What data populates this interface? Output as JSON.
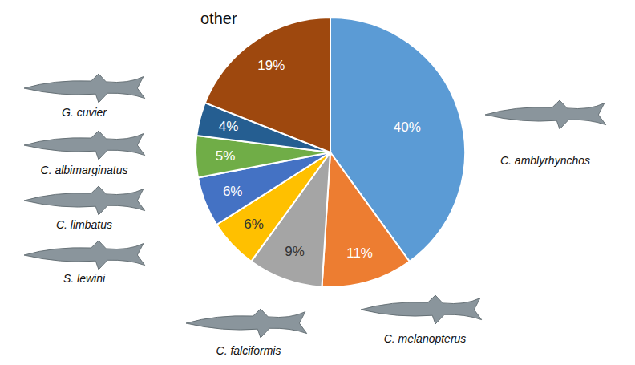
{
  "chart_data": {
    "type": "pie",
    "categories": [
      "C. amblyrhynchos",
      "C. melanopterus",
      "C. falciformis",
      "S. lewini",
      "C. limbatus",
      "C. albimarginatus",
      "G. cuvier",
      "other"
    ],
    "values": [
      40,
      11,
      9,
      6,
      6,
      5,
      4,
      19
    ],
    "value_labels": [
      "40%",
      "11%",
      "9%",
      "6%",
      "6%",
      "5%",
      "4%",
      "19%"
    ],
    "colors": [
      "#5b9bd5",
      "#ed7d31",
      "#a5a5a5",
      "#ffc000",
      "#4472c4",
      "#70ad47",
      "#255e91",
      "#9e480e"
    ],
    "data_labels": true
  }
}
